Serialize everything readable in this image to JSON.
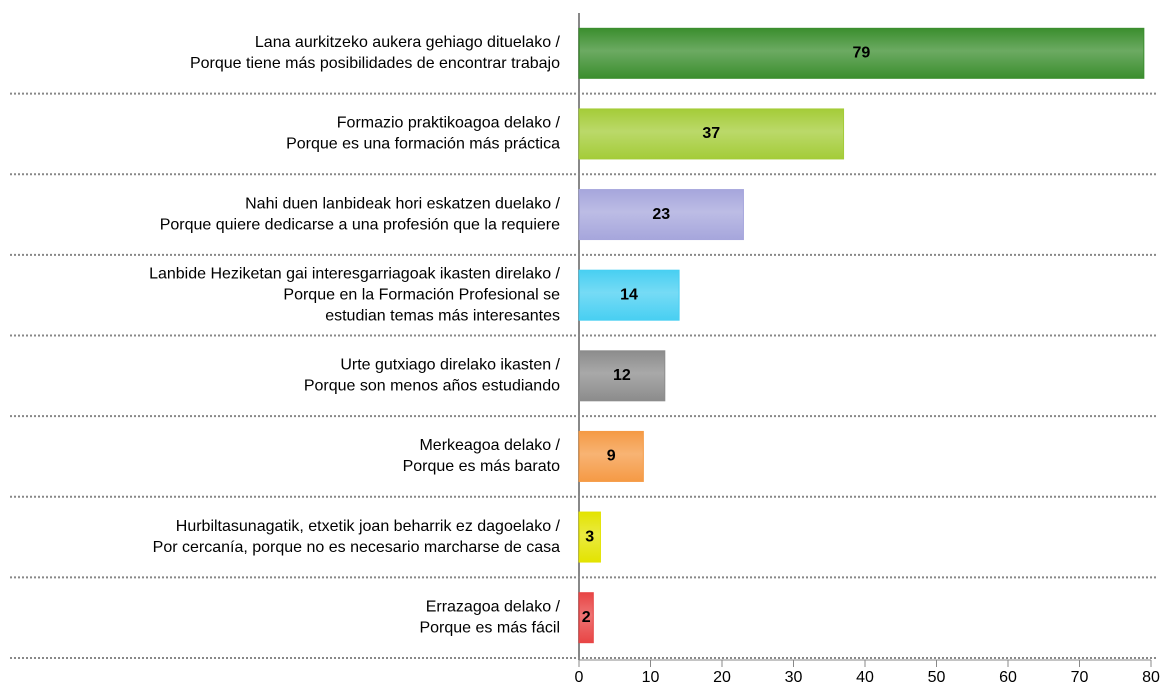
{
  "chart_data": {
    "type": "barh",
    "categories": [
      [
        "Lana aurkitzeko aukera gehiago dituelako /",
        "Porque tiene más posibilidades de encontrar trabajo"
      ],
      [
        "Formazio praktikoagoa delako /",
        "Porque es una formación más práctica"
      ],
      [
        "Nahi duen lanbideak hori eskatzen duelako /",
        "Porque quiere dedicarse a una profesión que la requiere"
      ],
      [
        "Lanbide Heziketan gai interesgarriagoak ikasten direlako /",
        "Porque en la Formación Profesional se",
        "estudian temas más interesantes"
      ],
      [
        "Urte gutxiago direlako ikasten /",
        "Porque son menos años estudiando"
      ],
      [
        "Merkeagoa delako /",
        "Porque es más barato"
      ],
      [
        "Hurbiltasunagatik, etxetik joan beharrik ez dagoelako /",
        "Por cercanía, porque no es necesario marcharse de casa"
      ],
      [
        "Errazagoa delako /",
        "Porque es más fácil"
      ]
    ],
    "values": [
      79,
      37,
      23,
      14,
      12,
      9,
      3,
      2
    ],
    "colors": [
      "#3b8e2e",
      "#a4cc38",
      "#a6a6dc",
      "#48cff2",
      "#8c8c8c",
      "#f59a45",
      "#e3e300",
      "#e84545"
    ],
    "xlim": [
      0,
      80
    ],
    "xticks": [
      0,
      10,
      20,
      30,
      40,
      50,
      60,
      70,
      80
    ]
  }
}
